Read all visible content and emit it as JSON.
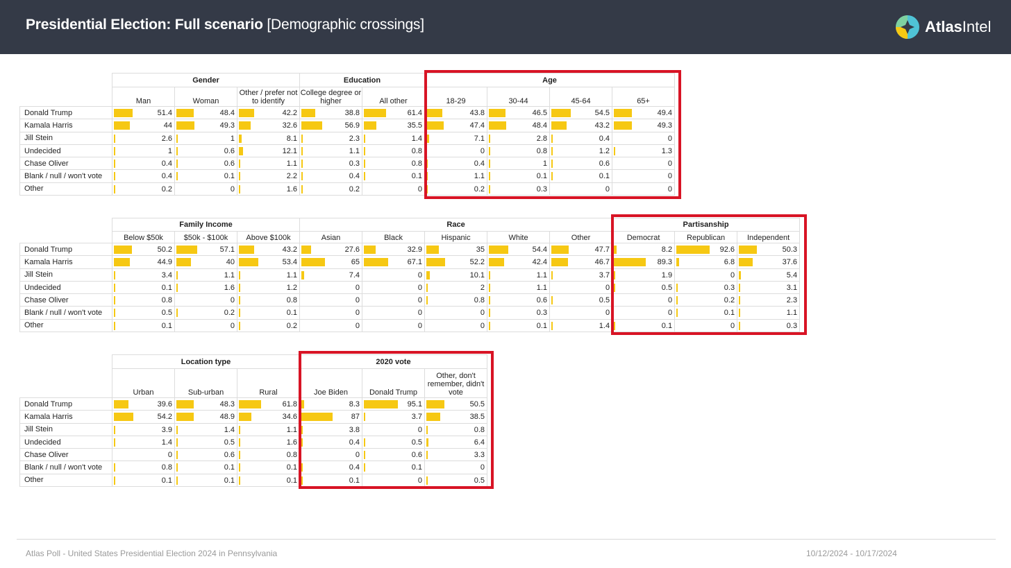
{
  "header": {
    "title_bold": "Presidential Election: Full scenario",
    "title_rest": "[Demographic crossings]",
    "brand_bold": "Atlas",
    "brand_rest": "Intel"
  },
  "colors": {
    "bar": "#f6c813",
    "header_bg": "#343a47",
    "highlight": "#d81425"
  },
  "rows": [
    "Donald Trump",
    "Kamala Harris",
    "Jill Stein",
    "Undecided",
    "Chase Oliver",
    "Blank / null / won't vote",
    "Other"
  ],
  "tables": [
    {
      "groups": [
        {
          "label": "Gender",
          "span": 3
        },
        {
          "label": "Education",
          "span": 2
        },
        {
          "label": "Age",
          "span": 4
        }
      ],
      "columns": [
        {
          "label": "Man",
          "values": [
            51.4,
            44,
            2.6,
            1,
            0.4,
            0.4,
            0.2
          ]
        },
        {
          "label": "Woman",
          "values": [
            48.4,
            49.3,
            1,
            0.6,
            0.6,
            0.1,
            0
          ]
        },
        {
          "label": "Other / prefer not to identify",
          "values": [
            42.2,
            32.6,
            8.1,
            12.1,
            1.1,
            2.2,
            1.6
          ]
        },
        {
          "label": "College degree or higher",
          "values": [
            38.8,
            56.9,
            2.3,
            1.1,
            0.3,
            0.4,
            0.2
          ]
        },
        {
          "label": "All other",
          "values": [
            61.4,
            35.5,
            1.4,
            0.8,
            0.8,
            0.1,
            0
          ]
        },
        {
          "label": "18-29",
          "values": [
            43.8,
            47.4,
            7.1,
            0,
            0.4,
            1.1,
            0.2
          ]
        },
        {
          "label": "30-44",
          "values": [
            46.5,
            48.4,
            2.8,
            0.8,
            1,
            0.1,
            0.3
          ]
        },
        {
          "label": "45-64",
          "values": [
            54.5,
            43.2,
            0.4,
            1.2,
            0.6,
            0.1,
            0
          ]
        },
        {
          "label": "65+",
          "values": [
            49.4,
            49.3,
            0,
            1.3,
            0,
            0,
            0
          ]
        }
      ]
    },
    {
      "groups": [
        {
          "label": "Family Income",
          "span": 3
        },
        {
          "label": "Race",
          "span": 5
        },
        {
          "label": "Partisanship",
          "span": 3
        }
      ],
      "columns": [
        {
          "label": "Below $50k",
          "values": [
            50.2,
            44.9,
            3.4,
            0.1,
            0.8,
            0.5,
            0.1
          ]
        },
        {
          "label": "$50k - $100k",
          "values": [
            57.1,
            40,
            1.1,
            1.6,
            0,
            0.2,
            0
          ]
        },
        {
          "label": "Above $100k",
          "values": [
            43.2,
            53.4,
            1.1,
            1.2,
            0.8,
            0.1,
            0.2
          ]
        },
        {
          "label": "Asian",
          "values": [
            27.6,
            65,
            7.4,
            0,
            0,
            0,
            0
          ]
        },
        {
          "label": "Black",
          "values": [
            32.9,
            67.1,
            0,
            0,
            0,
            0,
            0
          ]
        },
        {
          "label": "Hispanic",
          "values": [
            35,
            52.2,
            10.1,
            2,
            0.8,
            0,
            0
          ]
        },
        {
          "label": "White",
          "values": [
            54.4,
            42.4,
            1.1,
            1.1,
            0.6,
            0.3,
            0.1
          ]
        },
        {
          "label": "Other",
          "values": [
            47.7,
            46.7,
            3.7,
            0,
            0.5,
            0,
            1.4
          ]
        },
        {
          "label": "Democrat",
          "values": [
            8.2,
            89.3,
            1.9,
            0.5,
            0,
            0,
            0.1
          ]
        },
        {
          "label": "Republican",
          "values": [
            92.6,
            6.8,
            0,
            0.3,
            0.2,
            0.1,
            0
          ]
        },
        {
          "label": "Independent",
          "values": [
            50.3,
            37.6,
            5.4,
            3.1,
            2.3,
            1.1,
            0.3
          ]
        }
      ]
    },
    {
      "groups": [
        {
          "label": "Location type",
          "span": 3
        },
        {
          "label": "2020 vote",
          "span": 3
        }
      ],
      "columns": [
        {
          "label": "Urban",
          "values": [
            39.6,
            54.2,
            3.9,
            1.4,
            0,
            0.8,
            0.1
          ]
        },
        {
          "label": "Sub-urban",
          "values": [
            48.3,
            48.9,
            1.4,
            0.5,
            0.6,
            0.1,
            0.1
          ]
        },
        {
          "label": "Rural",
          "values": [
            61.8,
            34.6,
            1.1,
            1.6,
            0.8,
            0.1,
            0.1
          ]
        },
        {
          "label": "Joe Biden",
          "values": [
            8.3,
            87,
            3.8,
            0.4,
            0,
            0.4,
            0.1
          ]
        },
        {
          "label": "Donald Trump",
          "values": [
            95.1,
            3.7,
            0,
            0.5,
            0.6,
            0.1,
            0
          ]
        },
        {
          "label": "Other, don't remember, didn't vote",
          "values": [
            50.5,
            38.5,
            0.8,
            6.4,
            3.3,
            0,
            0.5
          ]
        }
      ]
    }
  ],
  "footer": {
    "left": "Atlas Poll - United States Presidential Election 2024 in Pennsylvania",
    "right": "10/12/2024 - 10/17/2024"
  }
}
